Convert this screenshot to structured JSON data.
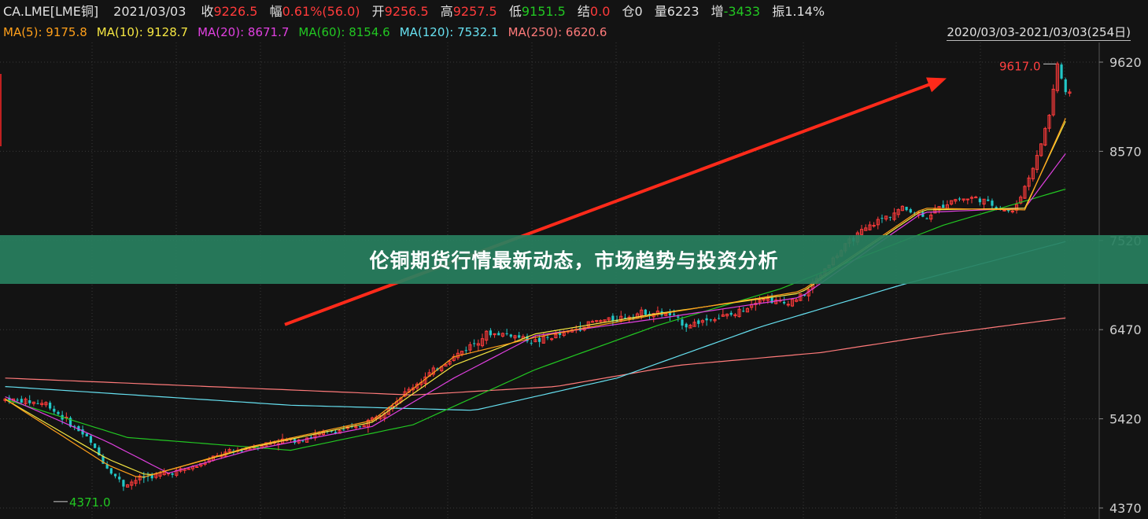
{
  "quote": {
    "symbol": "CA.LME[LME铜]",
    "date": "2021/03/03",
    "close_label": "收",
    "close": "9226.5",
    "change_pct_label": "幅",
    "change_pct": "0.61%(56.0)",
    "open_label": "开",
    "open": "9256.5",
    "high_label": "高",
    "high": "9257.5",
    "low_label": "低",
    "low": "9151.5",
    "settle_label": "结",
    "settle": "0.0",
    "oi_label": "仓",
    "oi": "0",
    "volume_label": "量",
    "volume": "6223",
    "oi_change_label": "增",
    "oi_change": "-3433",
    "amplitude_label": "振",
    "amplitude": "1.14%"
  },
  "moving_averages": [
    {
      "label": "MA(5):",
      "value": "9175.8",
      "color": "#ff9f1a"
    },
    {
      "label": "MA(10):",
      "value": "9128.7",
      "color": "#f5e642"
    },
    {
      "label": "MA(20):",
      "value": "8671.7",
      "color": "#e040e0"
    },
    {
      "label": "MA(60):",
      "value": "8154.6",
      "color": "#22c722"
    },
    {
      "label": "MA(120):",
      "value": "7532.1",
      "color": "#66e0f0"
    },
    {
      "label": "MA(250):",
      "value": "6620.6",
      "color": "#ff7a7a"
    }
  ],
  "date_range": "2020/03/03-2021/03/03(254日)",
  "banner_title": "伦铜期货行情最新动态，市场趋势与投资分析",
  "colors": {
    "up": "#ff3b3b",
    "down": "#22c7c7",
    "background": "#131313",
    "grid": "#3a3a3a",
    "banner": "#2a8060"
  },
  "chart_data": {
    "type": "candlestick",
    "title": "",
    "x_range": [
      "2020/03/03",
      "2021/03/03"
    ],
    "ylim": [
      4371,
      9700
    ],
    "y_ticks": [
      9620,
      8570,
      7520,
      6470,
      5420,
      4370
    ],
    "grid": true,
    "annotations": [
      {
        "text": "9617.0",
        "type": "high"
      },
      {
        "text": "4371.0",
        "type": "low"
      }
    ],
    "trend_arrow": {
      "from_price": 6530,
      "to_price": 9430,
      "color": "#ff2a1a"
    },
    "close_path": [
      [
        0,
        5650
      ],
      [
        10,
        5600
      ],
      [
        20,
        5200
      ],
      [
        25,
        4850
      ],
      [
        29,
        4640
      ],
      [
        33,
        4720
      ],
      [
        40,
        4780
      ],
      [
        47,
        4860
      ],
      [
        53,
        5000
      ],
      [
        60,
        5080
      ],
      [
        66,
        5150
      ],
      [
        72,
        5180
      ],
      [
        80,
        5270
      ],
      [
        86,
        5310
      ],
      [
        90,
        5420
      ],
      [
        95,
        5600
      ],
      [
        100,
        5800
      ],
      [
        107,
        6050
      ],
      [
        113,
        6250
      ],
      [
        118,
        6420
      ],
      [
        123,
        6420
      ],
      [
        130,
        6330
      ],
      [
        137,
        6420
      ],
      [
        144,
        6560
      ],
      [
        150,
        6600
      ],
      [
        157,
        6680
      ],
      [
        163,
        6640
      ],
      [
        167,
        6520
      ],
      [
        173,
        6600
      ],
      [
        179,
        6650
      ],
      [
        185,
        6850
      ],
      [
        191,
        6780
      ],
      [
        196,
        6880
      ],
      [
        202,
        7250
      ],
      [
        208,
        7550
      ],
      [
        214,
        7750
      ],
      [
        220,
        7900
      ],
      [
        226,
        7800
      ],
      [
        232,
        8000
      ],
      [
        238,
        8020
      ],
      [
        244,
        7900
      ],
      [
        247,
        7850
      ],
      [
        250,
        8150
      ],
      [
        253,
        8500
      ],
      [
        256,
        9000
      ],
      [
        258,
        9600
      ],
      [
        260,
        9250
      ],
      [
        262,
        9226
      ]
    ],
    "ma": {
      "MA(250)": [
        [
          0,
          5900
        ],
        [
          100,
          5700
        ],
        [
          135,
          5800
        ],
        [
          165,
          6050
        ],
        [
          200,
          6200
        ],
        [
          230,
          6420
        ],
        [
          262,
          6620
        ]
      ],
      "MA(120)": [
        [
          0,
          5800
        ],
        [
          70,
          5580
        ],
        [
          115,
          5520
        ],
        [
          150,
          5900
        ],
        [
          185,
          6500
        ],
        [
          220,
          7000
        ],
        [
          262,
          7532
        ]
      ],
      "MA(60)": [
        [
          0,
          5650
        ],
        [
          30,
          5200
        ],
        [
          70,
          5050
        ],
        [
          100,
          5350
        ],
        [
          130,
          6000
        ],
        [
          160,
          6520
        ],
        [
          190,
          6950
        ],
        [
          230,
          7700
        ],
        [
          262,
          8154
        ]
      ],
      "MA(20)": [
        [
          0,
          5680
        ],
        [
          25,
          5150
        ],
        [
          40,
          4780
        ],
        [
          60,
          5050
        ],
        [
          90,
          5330
        ],
        [
          110,
          5900
        ],
        [
          130,
          6400
        ],
        [
          160,
          6600
        ],
        [
          195,
          6850
        ],
        [
          225,
          7850
        ],
        [
          250,
          7900
        ],
        [
          262,
          8671
        ]
      ],
      "MA(10)": [
        [
          0,
          5650
        ],
        [
          25,
          4950
        ],
        [
          35,
          4750
        ],
        [
          60,
          5080
        ],
        [
          90,
          5380
        ],
        [
          110,
          6050
        ],
        [
          130,
          6420
        ],
        [
          160,
          6660
        ],
        [
          195,
          6900
        ],
        [
          225,
          7880
        ],
        [
          250,
          7900
        ],
        [
          262,
          9128
        ]
      ],
      "MA(5)": [
        [
          0,
          5650
        ],
        [
          25,
          4880
        ],
        [
          33,
          4720
        ],
        [
          60,
          5090
        ],
        [
          90,
          5400
        ],
        [
          110,
          6150
        ],
        [
          130,
          6380
        ],
        [
          160,
          6650
        ],
        [
          195,
          6920
        ],
        [
          225,
          7900
        ],
        [
          250,
          7880
        ],
        [
          262,
          9175
        ]
      ]
    }
  }
}
